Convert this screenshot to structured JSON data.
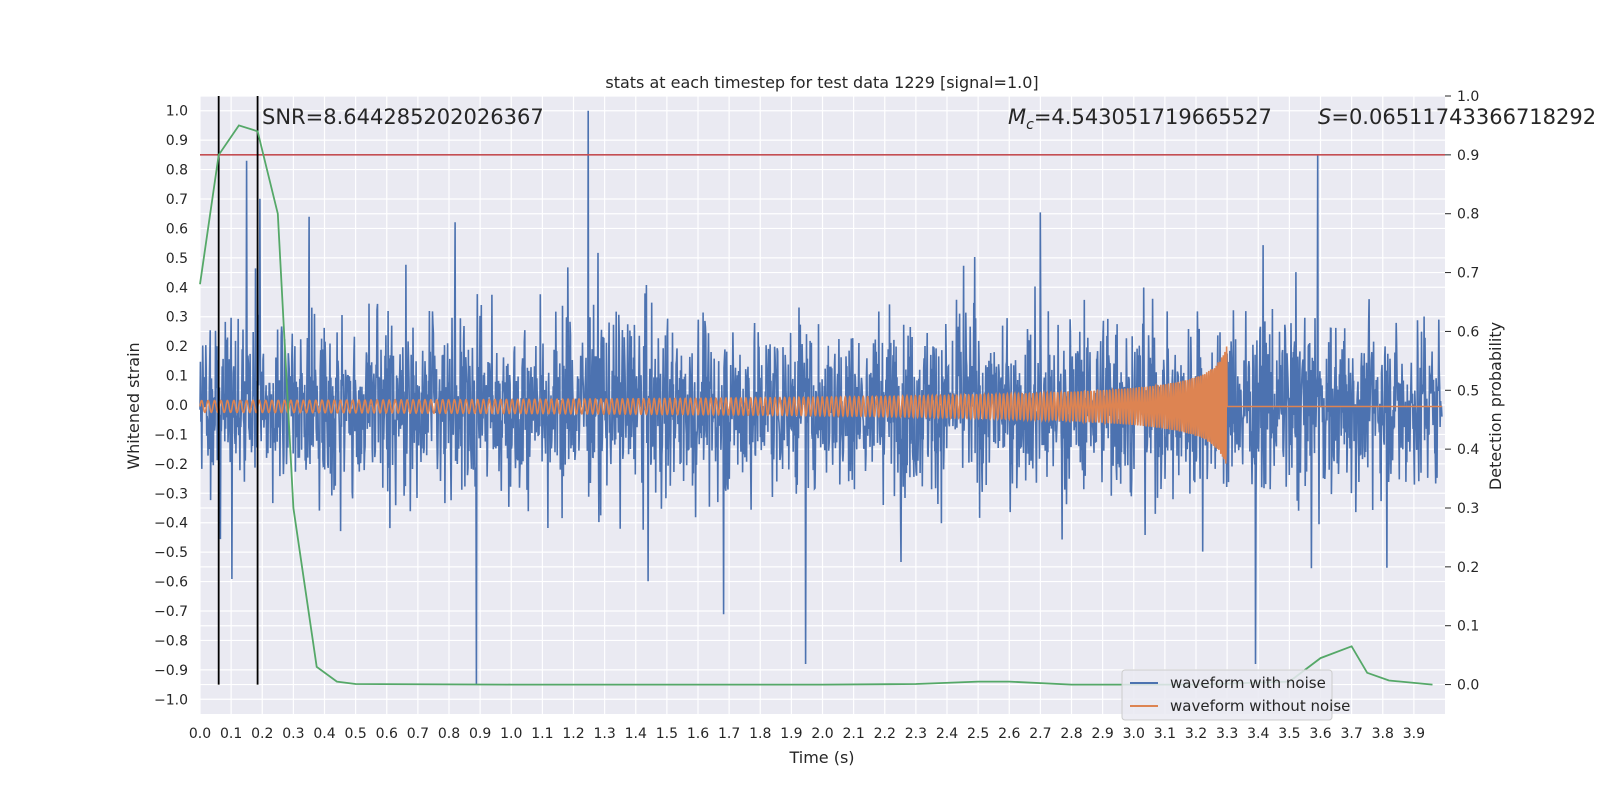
{
  "chart_data": {
    "type": "line",
    "title": "stats at each timestep for test data 1229 [signal=1.0]",
    "xlabel": "Time (s)",
    "ylabel_left": "Whitened strain",
    "ylabel_right": "Detection probability",
    "xlim": [
      0.0,
      4.0
    ],
    "ylim_left": [
      -1.05,
      1.05
    ],
    "ylim_right": [
      -0.05,
      1.0
    ],
    "x_ticks": [
      "0.0",
      "0.1",
      "0.2",
      "0.3",
      "0.4",
      "0.5",
      "0.6",
      "0.7",
      "0.8",
      "0.9",
      "1.0",
      "1.1",
      "1.2",
      "1.3",
      "1.4",
      "1.5",
      "1.6",
      "1.7",
      "1.8",
      "1.9",
      "2.0",
      "2.1",
      "2.2",
      "2.3",
      "2.4",
      "2.5",
      "2.6",
      "2.7",
      "2.8",
      "2.9",
      "3.0",
      "3.1",
      "3.2",
      "3.3",
      "3.4",
      "3.5",
      "3.6",
      "3.7",
      "3.8",
      "3.9"
    ],
    "y_left_ticks": [
      "1.0",
      "0.9",
      "0.8",
      "0.7",
      "0.6",
      "0.5",
      "0.4",
      "0.3",
      "0.2",
      "0.1",
      "0.0",
      "−0.1",
      "−0.2",
      "−0.3",
      "−0.4",
      "−0.5",
      "−0.6",
      "−0.7",
      "−0.8",
      "−0.9",
      "−1.0"
    ],
    "y_right_ticks": [
      "1.0",
      "0.9",
      "0.8",
      "0.7",
      "0.6",
      "0.5",
      "0.4",
      "0.3",
      "0.2",
      "0.1",
      "0.0"
    ],
    "annotations": {
      "snr": "SNR=8.644285202026367",
      "mc_symbol": "M",
      "mc_subscript": "c",
      "mc_value": "=4.543051719665527",
      "s_symbol": "S",
      "s_value": "=0.06511743366718292"
    },
    "threshold": 0.9,
    "vertical_lines": [
      0.06,
      0.185
    ],
    "series": [
      {
        "name": "waveform with noise",
        "color": "#4c72b0",
        "axis": "left",
        "description": "noisy whitened strain, roughly within -0.5..0.5 with spikes up to 1.0 and down to -0.95",
        "notable_peaks": [
          {
            "x": 1.25,
            "y": 1.0
          },
          {
            "x": 3.6,
            "y": 0.85
          },
          {
            "x": 0.15,
            "y": 0.83
          },
          {
            "x": 0.89,
            "y": -0.95
          },
          {
            "x": 3.4,
            "y": -0.88
          },
          {
            "x": 1.95,
            "y": -0.88
          }
        ]
      },
      {
        "name": "waveform without noise",
        "color": "#dd8452",
        "axis": "left",
        "description": "chirp signal: amplitude about 0.02 at t=0 growing to about 0.2 at merger t=3.3, zero afterwards",
        "merger_time": 3.3,
        "start_amplitude": 0.02,
        "peak_amplitude": 0.21
      },
      {
        "name": "detection probability",
        "color": "#55a868",
        "axis": "right",
        "points": [
          [
            0.0,
            0.68
          ],
          [
            0.06,
            0.9
          ],
          [
            0.125,
            0.95
          ],
          [
            0.185,
            0.94
          ],
          [
            0.25,
            0.8
          ],
          [
            0.3,
            0.3
          ],
          [
            0.375,
            0.03
          ],
          [
            0.44,
            0.005
          ],
          [
            0.5,
            0.001
          ],
          [
            1.0,
            0.0
          ],
          [
            2.0,
            0.0
          ],
          [
            2.3,
            0.001
          ],
          [
            2.5,
            0.005
          ],
          [
            2.6,
            0.005
          ],
          [
            2.8,
            0.0
          ],
          [
            3.2,
            0.0
          ],
          [
            3.5,
            0.005
          ],
          [
            3.6,
            0.045
          ],
          [
            3.7,
            0.065
          ],
          [
            3.75,
            0.02
          ],
          [
            3.82,
            0.007
          ],
          [
            3.96,
            0.0
          ]
        ]
      }
    ],
    "legend": {
      "position": "lower-right",
      "entries": [
        {
          "label": "waveform with noise",
          "color": "#4c72b0"
        },
        {
          "label": "waveform without noise",
          "color": "#dd8452"
        }
      ]
    },
    "colors": {
      "plot_background": "#eaeaf2",
      "grid": "#ffffff",
      "threshold_line": "#c44e52",
      "marker_lines": "#000000"
    }
  }
}
